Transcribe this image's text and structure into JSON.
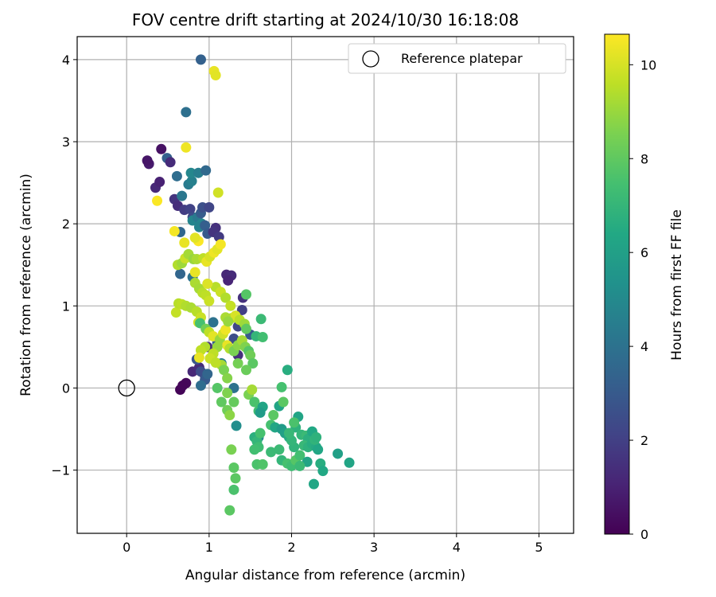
{
  "chart_data": {
    "type": "scatter",
    "title": "FOV centre drift starting at 2024/10/30 16:18:08",
    "xlabel": "Angular distance from reference (arcmin)",
    "ylabel": "Rotation from reference (arcmin)",
    "xlim": [
      -0.6,
      5.42
    ],
    "ylim": [
      -1.77,
      4.28
    ],
    "x_ticks": [
      0,
      1,
      2,
      3,
      4,
      5
    ],
    "y_ticks": [
      -1,
      0,
      1,
      2,
      3,
      4
    ],
    "x_tick_labels": [
      "0",
      "1",
      "2",
      "3",
      "4",
      "5"
    ],
    "y_tick_labels": [
      "−1",
      "0",
      "1",
      "2",
      "3",
      "4"
    ],
    "grid": true,
    "legend": {
      "position": "top-right",
      "entries": [
        "Reference platepar"
      ]
    },
    "reference_point": {
      "x": 0,
      "y": 0,
      "label": "Reference platepar",
      "marker": "open-circle"
    },
    "colorbar": {
      "label": "Hours from first FF file",
      "range": [
        0,
        10.65
      ],
      "ticks": [
        0,
        2,
        4,
        6,
        8,
        10
      ],
      "tick_labels": [
        "0",
        "2",
        "4",
        "6",
        "8",
        "10"
      ],
      "colormap": "viridis"
    },
    "points": [
      [
        0.65,
        -0.02,
        0.1
      ],
      [
        0.72,
        0.06,
        0.2
      ],
      [
        0.68,
        0.03,
        0.15
      ],
      [
        0.95,
        0.15,
        1.5
      ],
      [
        0.8,
        0.2,
        1.2
      ],
      [
        0.88,
        0.25,
        1.3
      ],
      [
        1.05,
        0.42,
        1.8
      ],
      [
        0.98,
        0.5,
        1.4
      ],
      [
        0.35,
        2.44,
        1.2
      ],
      [
        0.4,
        2.51,
        1.0
      ],
      [
        0.27,
        2.73,
        0.8
      ],
      [
        0.25,
        2.77,
        0.6
      ],
      [
        0.42,
        2.91,
        0.5
      ],
      [
        0.49,
        2.8,
        3.2
      ],
      [
        0.53,
        2.75,
        1.3
      ],
      [
        0.58,
        2.3,
        1.6
      ],
      [
        0.62,
        2.22,
        1.4
      ],
      [
        0.61,
        2.58,
        3.8
      ],
      [
        0.67,
        2.34,
        4.2
      ],
      [
        0.75,
        2.48,
        4.4
      ],
      [
        0.79,
        2.52,
        4.6
      ],
      [
        0.78,
        2.62,
        4.9
      ],
      [
        0.87,
        2.62,
        4.5
      ],
      [
        0.96,
        2.65,
        3.6
      ],
      [
        0.72,
        3.36,
        3.9
      ],
      [
        0.9,
        4.0,
        3.3
      ],
      [
        0.7,
        2.17,
        1.9
      ],
      [
        0.77,
        2.18,
        2.1
      ],
      [
        0.8,
        2.08,
        2.4
      ],
      [
        0.8,
        2.04,
        4.8
      ],
      [
        0.86,
        2.08,
        4.3
      ],
      [
        0.9,
        2.13,
        3.1
      ],
      [
        0.92,
        2.2,
        2.6
      ],
      [
        0.91,
        2.0,
        4.9
      ],
      [
        0.88,
        1.96,
        4.7
      ],
      [
        0.95,
        1.98,
        3.2
      ],
      [
        0.98,
        1.88,
        3.0
      ],
      [
        1.0,
        2.2,
        2.2
      ],
      [
        1.08,
        1.95,
        1.5
      ],
      [
        1.05,
        1.9,
        1.6
      ],
      [
        1.12,
        1.84,
        1.8
      ],
      [
        0.65,
        1.9,
        3.5
      ],
      [
        0.65,
        1.39,
        3.5
      ],
      [
        0.8,
        1.35,
        4.0
      ],
      [
        1.21,
        1.38,
        1.2
      ],
      [
        1.27,
        1.37,
        1.3
      ],
      [
        1.41,
        1.1,
        1.5
      ],
      [
        1.23,
        1.31,
        1.1
      ],
      [
        1.4,
        0.95,
        2.0
      ],
      [
        1.35,
        0.75,
        2.2
      ],
      [
        1.5,
        0.65,
        3.0
      ],
      [
        1.35,
        0.4,
        1.5
      ],
      [
        1.3,
        0.6,
        2.5
      ],
      [
        1.1,
        0.55,
        3.2
      ],
      [
        1.05,
        0.8,
        4.0
      ],
      [
        1.15,
        0.3,
        4.5
      ],
      [
        0.85,
        0.35,
        2.8
      ],
      [
        0.9,
        0.2,
        2.5
      ],
      [
        0.95,
        0.1,
        3.0
      ],
      [
        0.98,
        0.17,
        3.5
      ],
      [
        0.9,
        0.03,
        3.8
      ],
      [
        1.3,
        0.0,
        4.0
      ],
      [
        1.33,
        -0.46,
        5.2
      ],
      [
        1.6,
        -0.6,
        5.0
      ],
      [
        0.6,
        0.92,
        9.7
      ],
      [
        0.63,
        1.03,
        9.5
      ],
      [
        0.67,
        1.02,
        9.6
      ],
      [
        0.72,
        1.0,
        9.4
      ],
      [
        0.78,
        0.98,
        9.3
      ],
      [
        0.85,
        0.93,
        9.5
      ],
      [
        0.9,
        0.86,
        9.8
      ],
      [
        0.87,
        0.8,
        9.9
      ],
      [
        0.62,
        1.5,
        9.4
      ],
      [
        0.67,
        1.52,
        9.1
      ],
      [
        0.71,
        1.58,
        9.8
      ],
      [
        0.75,
        1.63,
        9.2
      ],
      [
        0.81,
        1.57,
        9.0
      ],
      [
        0.85,
        1.57,
        9.3
      ],
      [
        0.93,
        1.58,
        9.6
      ],
      [
        0.97,
        1.54,
        10.3
      ],
      [
        1.01,
        1.6,
        10.0
      ],
      [
        1.06,
        1.65,
        10.4
      ],
      [
        1.1,
        1.69,
        10.2
      ],
      [
        1.14,
        1.75,
        10.5
      ],
      [
        1.08,
        1.23,
        9.5
      ],
      [
        1.14,
        1.17,
        9.8
      ],
      [
        1.2,
        1.1,
        9.4
      ],
      [
        1.26,
        1.0,
        9.7
      ],
      [
        0.83,
        1.28,
        9.3
      ],
      [
        0.88,
        1.21,
        9.2
      ],
      [
        0.92,
        1.16,
        9.5
      ],
      [
        0.96,
        1.13,
        9.6
      ],
      [
        1.0,
        1.06,
        9.8
      ],
      [
        0.58,
        1.91,
        10.5
      ],
      [
        0.7,
        1.77,
        10.3
      ],
      [
        0.87,
        1.79,
        10.6
      ],
      [
        0.83,
        1.83,
        10.2
      ],
      [
        0.98,
        1.27,
        10.1
      ],
      [
        0.83,
        1.41,
        10.3
      ],
      [
        0.37,
        2.28,
        10.6
      ],
      [
        0.72,
        2.93,
        10.4
      ],
      [
        1.06,
        3.86,
        10.3
      ],
      [
        1.08,
        3.81,
        10.2
      ],
      [
        1.11,
        2.38,
        9.9
      ],
      [
        0.89,
        0.79,
        7.5
      ],
      [
        0.96,
        0.72,
        8.3
      ],
      [
        1.0,
        0.68,
        9.6
      ],
      [
        1.05,
        0.63,
        10.2
      ],
      [
        1.13,
        0.59,
        9.0
      ],
      [
        1.17,
        0.66,
        9.9
      ],
      [
        1.2,
        0.71,
        10.4
      ],
      [
        1.22,
        0.52,
        10.3
      ],
      [
        1.25,
        0.48,
        9.4
      ],
      [
        1.3,
        0.45,
        8.5
      ],
      [
        1.35,
        0.52,
        8.8
      ],
      [
        1.4,
        0.58,
        9.2
      ],
      [
        1.44,
        0.5,
        8.6
      ],
      [
        1.48,
        0.45,
        7.8
      ],
      [
        1.5,
        0.4,
        8.3
      ],
      [
        1.27,
        0.85,
        9.5
      ],
      [
        1.32,
        0.88,
        10.0
      ],
      [
        1.37,
        0.83,
        9.5
      ],
      [
        1.43,
        0.78,
        9.1
      ],
      [
        1.45,
        0.72,
        8.0
      ],
      [
        1.1,
        0.5,
        9.0
      ],
      [
        1.05,
        0.42,
        9.6
      ],
      [
        0.95,
        0.5,
        9.4
      ],
      [
        0.9,
        0.46,
        9.6
      ],
      [
        0.88,
        0.37,
        10.3
      ],
      [
        1.15,
        0.28,
        9.2
      ],
      [
        1.18,
        0.22,
        8.5
      ],
      [
        1.22,
        0.12,
        8.7
      ],
      [
        1.01,
        0.36,
        9.8
      ],
      [
        1.08,
        0.31,
        9.6
      ],
      [
        1.2,
        0.86,
        9.3
      ],
      [
        1.23,
        0.81,
        9.0
      ],
      [
        1.45,
        1.14,
        7.8
      ],
      [
        1.57,
        0.63,
        7.0
      ],
      [
        1.63,
        0.84,
        7.2
      ],
      [
        1.65,
        0.62,
        7.4
      ],
      [
        1.53,
        0.3,
        7.9
      ],
      [
        1.45,
        0.22,
        8.2
      ],
      [
        1.35,
        0.3,
        8.4
      ],
      [
        1.1,
        0.0,
        7.8
      ],
      [
        1.22,
        -0.06,
        8.6
      ],
      [
        1.3,
        -0.17,
        8.1
      ],
      [
        1.15,
        -0.17,
        8.0
      ],
      [
        1.22,
        -0.27,
        8.3
      ],
      [
        1.25,
        -0.33,
        8.8
      ],
      [
        1.48,
        -0.08,
        8.5
      ],
      [
        1.52,
        -0.02,
        9.2
      ],
      [
        1.55,
        -0.17,
        7.6
      ],
      [
        1.6,
        -0.28,
        7.3
      ],
      [
        1.65,
        -0.23,
        6.2
      ],
      [
        1.62,
        -0.3,
        5.8
      ],
      [
        1.27,
        -0.75,
        8.5
      ],
      [
        1.3,
        -0.97,
        7.9
      ],
      [
        1.32,
        -1.1,
        7.9
      ],
      [
        1.3,
        -1.24,
        7.6
      ],
      [
        1.25,
        -1.49,
        7.9
      ],
      [
        1.55,
        -0.6,
        6.7
      ],
      [
        1.58,
        -0.65,
        7.0
      ],
      [
        1.62,
        -0.55,
        7.5
      ],
      [
        1.6,
        -0.72,
        7.3
      ],
      [
        1.55,
        -0.75,
        7.4
      ],
      [
        1.58,
        -0.93,
        7.6
      ],
      [
        1.65,
        -0.93,
        7.7
      ],
      [
        1.75,
        -0.78,
        7.2
      ],
      [
        1.78,
        -0.33,
        7.9
      ],
      [
        1.75,
        -0.45,
        7.5
      ],
      [
        1.8,
        -0.48,
        6.3
      ],
      [
        1.85,
        -0.22,
        6.2
      ],
      [
        1.9,
        -0.17,
        7.9
      ],
      [
        1.88,
        0.01,
        7.5
      ],
      [
        1.95,
        0.22,
        6.6
      ],
      [
        1.88,
        -0.5,
        5.8
      ],
      [
        1.92,
        -0.55,
        6.0
      ],
      [
        1.97,
        -0.6,
        6.5
      ],
      [
        2.05,
        -0.48,
        6.8
      ],
      [
        2.08,
        -0.35,
        6.2
      ],
      [
        2.12,
        -0.57,
        7.0
      ],
      [
        2.18,
        -0.58,
        7.2
      ],
      [
        2.2,
        -0.62,
        6.7
      ],
      [
        2.25,
        -0.53,
        6.4
      ],
      [
        1.85,
        -0.75,
        7.2
      ],
      [
        1.88,
        -0.88,
        7.0
      ],
      [
        1.95,
        -0.92,
        7.5
      ],
      [
        2.0,
        -0.95,
        7.3
      ],
      [
        2.05,
        -0.88,
        7.8
      ],
      [
        2.1,
        -0.82,
        7.4
      ],
      [
        2.15,
        -0.7,
        7.1
      ],
      [
        2.2,
        -0.72,
        6.8
      ],
      [
        2.25,
        -0.68,
        6.6
      ],
      [
        2.3,
        -0.72,
        6.5
      ],
      [
        2.28,
        -0.63,
        6.9
      ],
      [
        2.32,
        -0.75,
        6.3
      ],
      [
        2.35,
        -0.92,
        6.6
      ],
      [
        2.38,
        -1.01,
        6.4
      ],
      [
        2.27,
        -1.17,
        6.3
      ],
      [
        2.19,
        -0.9,
        6.2
      ],
      [
        2.1,
        -0.95,
        7.2
      ],
      [
        2.56,
        -0.8,
        6.0
      ],
      [
        2.7,
        -0.91,
        6.2
      ],
      [
        2.3,
        -0.6,
        6.8
      ],
      [
        2.03,
        -0.72,
        6.9
      ],
      [
        2.0,
        -0.64,
        7.0
      ],
      [
        1.97,
        -0.55,
        7.1
      ],
      [
        2.03,
        -0.42,
        7.6
      ]
    ]
  }
}
